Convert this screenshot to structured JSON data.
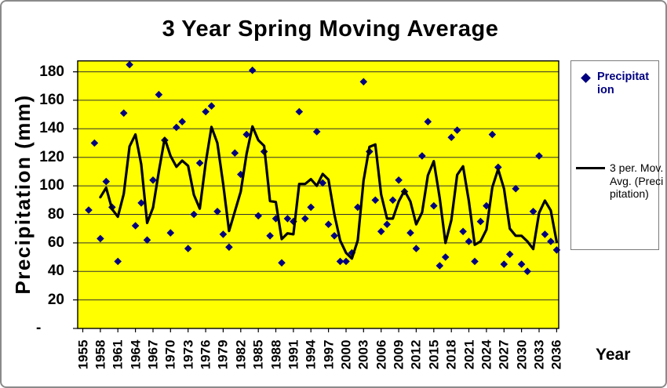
{
  "chart_data": {
    "type": "scatter",
    "title": "3 Year Spring Moving Average",
    "xlabel": "Year",
    "ylabel": "Precipitation (mm)",
    "legend_position": "right",
    "grid": "horizontal gridlines every 20 mm on yellow plot background",
    "ylim": [
      0,
      188
    ],
    "x_tick_labels": [
      "1955",
      "1958",
      "1961",
      "1964",
      "1967",
      "1970",
      "1973",
      "1976",
      "1979",
      "1982",
      "1985",
      "1988",
      "1991",
      "1994",
      "1997",
      "2000",
      "2003",
      "2006",
      "2009",
      "2012",
      "2015",
      "2018",
      "2021",
      "2024",
      "2027",
      "2030",
      "2033",
      "2036"
    ],
    "y_ticks": [
      {
        "value": 180,
        "label": "180"
      },
      {
        "value": 160,
        "label": "160"
      },
      {
        "value": 140,
        "label": "140"
      },
      {
        "value": 120,
        "label": "120"
      },
      {
        "value": 100,
        "label": "100"
      },
      {
        "value": 80,
        "label": "80"
      },
      {
        "value": 60,
        "label": "60"
      },
      {
        "value": 40,
        "label": "40"
      },
      {
        "value": 20,
        "label": "20"
      },
      {
        "value": 0,
        "label": "-"
      }
    ],
    "years": [
      1955,
      1956,
      1957,
      1958,
      1959,
      1960,
      1961,
      1962,
      1963,
      1964,
      1965,
      1966,
      1967,
      1968,
      1969,
      1970,
      1971,
      1972,
      1973,
      1974,
      1975,
      1976,
      1977,
      1978,
      1979,
      1980,
      1981,
      1982,
      1983,
      1984,
      1985,
      1986,
      1987,
      1988,
      1989,
      1990,
      1991,
      1992,
      1993,
      1994,
      1995,
      1996,
      1997,
      1998,
      1999,
      2000,
      2001,
      2002,
      2003,
      2004,
      2005,
      2006,
      2007,
      2008,
      2009,
      2010,
      2011,
      2012,
      2013,
      2014,
      2015,
      2016,
      2017,
      2018,
      2019,
      2020,
      2021,
      2022,
      2023,
      2024,
      2025,
      2026,
      2027,
      2028,
      2029,
      2030,
      2031,
      2032,
      2033,
      2034,
      2035,
      2036
    ],
    "series": [
      {
        "name": "Precipitation",
        "type": "scatter",
        "marker": "diamond",
        "color": "#000080",
        "values": [
          null,
          83,
          130,
          63,
          103,
          85,
          47,
          151,
          185,
          72,
          88,
          62,
          104,
          164,
          132,
          67,
          141,
          145,
          56,
          80,
          116,
          152,
          156,
          82,
          66,
          57,
          123,
          108,
          136,
          181,
          79,
          124,
          65,
          77,
          46,
          77,
          75,
          152,
          77,
          85,
          138,
          102,
          73,
          65,
          47,
          47,
          53,
          85,
          173,
          124,
          90,
          68,
          73,
          90,
          104,
          96,
          67,
          56,
          121,
          145,
          86,
          44,
          50,
          134,
          139,
          68,
          61,
          47,
          75,
          86,
          136,
          113,
          45,
          52,
          98,
          45,
          40,
          82,
          121,
          66,
          61,
          55
        ]
      },
      {
        "name": "3 per. Mov. Avg. (Precipitation)",
        "type": "line",
        "color": "#000000",
        "derivation": "3-period trailing moving average of Precipitation"
      }
    ]
  },
  "legend": {
    "precipitation_label": "Precipitation",
    "moving_avg_label": "3 per. Mov. Avg. (Precipitation)"
  },
  "colors": {
    "plot_bg": "#ffff00",
    "marker": "#000080",
    "ma_line": "#000000",
    "gridline": "#303030",
    "axis": "#000000",
    "chart_border": "#8a8a8a",
    "legend_border": "#7a7a7a",
    "legend_text": "#000080"
  }
}
